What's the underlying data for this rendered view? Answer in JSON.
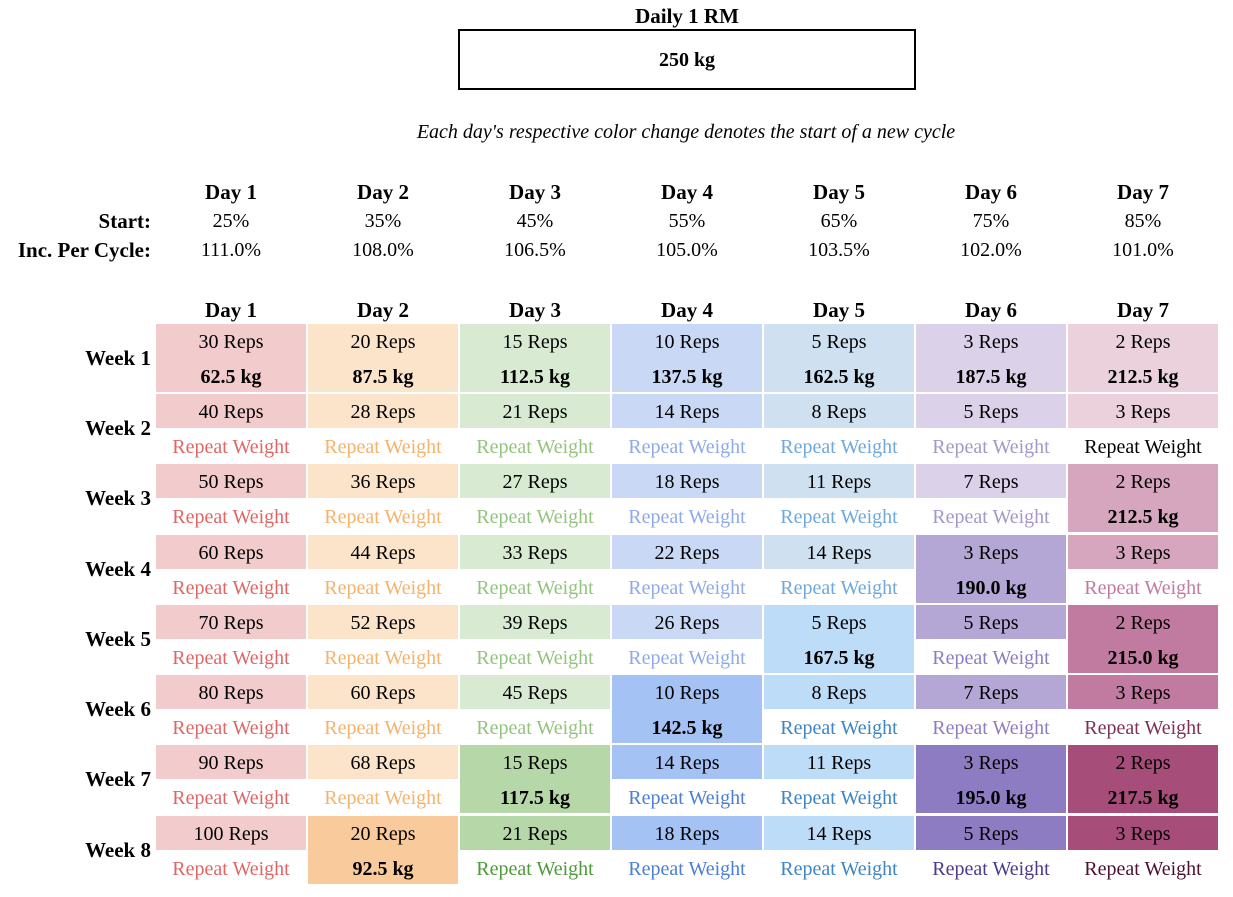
{
  "title": "Daily 1 RM",
  "one_rm": "250 kg",
  "note": "Each day's respective color change denotes the start of a new cycle",
  "settings": {
    "start_label": "Start:",
    "inc_label": "Inc. Per Cycle:",
    "days": [
      {
        "day": "Day 1",
        "start": "25%",
        "inc": "111.0%"
      },
      {
        "day": "Day 2",
        "start": "35%",
        "inc": "108.0%"
      },
      {
        "day": "Day 3",
        "start": "45%",
        "inc": "106.5%"
      },
      {
        "day": "Day 4",
        "start": "55%",
        "inc": "105.0%"
      },
      {
        "day": "Day 5",
        "start": "65%",
        "inc": "103.5%"
      },
      {
        "day": "Day 6",
        "start": "75%",
        "inc": "102.0%"
      },
      {
        "day": "Day 7",
        "start": "85%",
        "inc": "101.0%"
      }
    ]
  },
  "schedule": {
    "day_headers": [
      "Day 1",
      "Day 2",
      "Day 3",
      "Day 4",
      "Day 5",
      "Day 6",
      "Day 7"
    ],
    "weeks": [
      {
        "label": "Week 1",
        "cells": [
          {
            "reps": "30 Reps",
            "weight": "62.5 kg",
            "bg": "#f2cbcc",
            "fg": "#000000"
          },
          {
            "reps": "20 Reps",
            "weight": "87.5 kg",
            "bg": "#fce4cb",
            "fg": "#000000"
          },
          {
            "reps": "15 Reps",
            "weight": "112.5 kg",
            "bg": "#d8ead1",
            "fg": "#000000"
          },
          {
            "reps": "10 Reps",
            "weight": "137.5 kg",
            "bg": "#c9d9f5",
            "fg": "#000000"
          },
          {
            "reps": "5 Reps",
            "weight": "162.5 kg",
            "bg": "#cfe1f1",
            "fg": "#000000"
          },
          {
            "reps": "3 Reps",
            "weight": "187.5 kg",
            "bg": "#dbd1e8",
            "fg": "#000000"
          },
          {
            "reps": "2 Reps",
            "weight": "212.5 kg",
            "bg": "#ead1dc",
            "fg": "#000000"
          }
        ]
      },
      {
        "label": "Week 2",
        "cells": [
          {
            "reps": "40 Reps",
            "weight": "Repeat Weight",
            "bg": "#f2cbcc",
            "fg": "#e06666"
          },
          {
            "reps": "28 Reps",
            "weight": "Repeat Weight",
            "bg": "#fce4cb",
            "fg": "#f6b26b"
          },
          {
            "reps": "21 Reps",
            "weight": "Repeat Weight",
            "bg": "#d8ead1",
            "fg": "#93c47d"
          },
          {
            "reps": "14 Reps",
            "weight": "Repeat Weight",
            "bg": "#c9d9f5",
            "fg": "#8eaae8"
          },
          {
            "reps": "8 Reps",
            "weight": "Repeat Weight",
            "bg": "#cfe1f1",
            "fg": "#6fa8dc"
          },
          {
            "reps": "5 Reps",
            "weight": "Repeat Weight",
            "bg": "#dbd1e8",
            "fg": "#a497ca"
          },
          {
            "reps": "3 Reps",
            "weight": "Repeat Weight",
            "bg": "#ead1dc",
            "fg": "#000000"
          }
        ]
      },
      {
        "label": "Week 3",
        "cells": [
          {
            "reps": "50 Reps",
            "weight": "Repeat Weight",
            "bg": "#f2cbcc",
            "fg": "#e06666"
          },
          {
            "reps": "36 Reps",
            "weight": "Repeat Weight",
            "bg": "#fce4cb",
            "fg": "#f6b26b"
          },
          {
            "reps": "27 Reps",
            "weight": "Repeat Weight",
            "bg": "#d8ead1",
            "fg": "#93c47d"
          },
          {
            "reps": "18 Reps",
            "weight": "Repeat Weight",
            "bg": "#c9d9f5",
            "fg": "#8eaae8"
          },
          {
            "reps": "11 Reps",
            "weight": "Repeat Weight",
            "bg": "#cfe1f1",
            "fg": "#6fa8dc"
          },
          {
            "reps": "7 Reps",
            "weight": "Repeat Weight",
            "bg": "#dbd1e8",
            "fg": "#a497ca"
          },
          {
            "reps": "2 Reps",
            "weight": "212.5 kg",
            "bg": "#d5a6bd",
            "fg": "#000000"
          }
        ]
      },
      {
        "label": "Week 4",
        "cells": [
          {
            "reps": "60 Reps",
            "weight": "Repeat Weight",
            "bg": "#f2cbcc",
            "fg": "#e06666"
          },
          {
            "reps": "44 Reps",
            "weight": "Repeat Weight",
            "bg": "#fce4cb",
            "fg": "#f6b26b"
          },
          {
            "reps": "33 Reps",
            "weight": "Repeat Weight",
            "bg": "#d8ead1",
            "fg": "#93c47d"
          },
          {
            "reps": "22 Reps",
            "weight": "Repeat Weight",
            "bg": "#c9d9f5",
            "fg": "#8eaae8"
          },
          {
            "reps": "14 Reps",
            "weight": "Repeat Weight",
            "bg": "#cfe1f1",
            "fg": "#6fa8dc"
          },
          {
            "reps": "3 Reps",
            "weight": "190.0 kg",
            "bg": "#b4a7d6",
            "fg": "#000000"
          },
          {
            "reps": "3 Reps",
            "weight": "Repeat Weight",
            "bg": "#d5a6bd",
            "fg": "#c27ba0"
          }
        ]
      },
      {
        "label": "Week 5",
        "cells": [
          {
            "reps": "70 Reps",
            "weight": "Repeat Weight",
            "bg": "#f2cbcc",
            "fg": "#e06666"
          },
          {
            "reps": "52 Reps",
            "weight": "Repeat Weight",
            "bg": "#fce4cb",
            "fg": "#f6b26b"
          },
          {
            "reps": "39 Reps",
            "weight": "Repeat Weight",
            "bg": "#d8ead1",
            "fg": "#93c47d"
          },
          {
            "reps": "26 Reps",
            "weight": "Repeat Weight",
            "bg": "#c9d9f5",
            "fg": "#8eaae8"
          },
          {
            "reps": "5 Reps",
            "weight": "167.5 kg",
            "bg": "#bddcf8",
            "fg": "#000000"
          },
          {
            "reps": "5 Reps",
            "weight": "Repeat Weight",
            "bg": "#b4a7d6",
            "fg": "#8e7cc3"
          },
          {
            "reps": "2 Reps",
            "weight": "215.0 kg",
            "bg": "#c27ba0",
            "fg": "#000000"
          }
        ]
      },
      {
        "label": "Week 6",
        "cells": [
          {
            "reps": "80 Reps",
            "weight": "Repeat Weight",
            "bg": "#f2cbcc",
            "fg": "#e06666"
          },
          {
            "reps": "60 Reps",
            "weight": "Repeat Weight",
            "bg": "#fce4cb",
            "fg": "#f6b26b"
          },
          {
            "reps": "45 Reps",
            "weight": "Repeat Weight",
            "bg": "#d8ead1",
            "fg": "#93c47d"
          },
          {
            "reps": "10 Reps",
            "weight": "142.5 kg",
            "bg": "#a4c2f4",
            "fg": "#000000"
          },
          {
            "reps": "8 Reps",
            "weight": "Repeat Weight",
            "bg": "#bddcf8",
            "fg": "#3d85c6"
          },
          {
            "reps": "7 Reps",
            "weight": "Repeat Weight",
            "bg": "#b4a7d6",
            "fg": "#8e7cc3"
          },
          {
            "reps": "3 Reps",
            "weight": "Repeat Weight",
            "bg": "#c27ba0",
            "fg": "#7e3057"
          }
        ]
      },
      {
        "label": "Week 7",
        "cells": [
          {
            "reps": "90 Reps",
            "weight": "Repeat Weight",
            "bg": "#f2cbcc",
            "fg": "#e06666"
          },
          {
            "reps": "68 Reps",
            "weight": "Repeat Weight",
            "bg": "#fce4cb",
            "fg": "#f6b26b"
          },
          {
            "reps": "15 Reps",
            "weight": "117.5 kg",
            "bg": "#b6d7a8",
            "fg": "#000000"
          },
          {
            "reps": "14 Reps",
            "weight": "Repeat Weight",
            "bg": "#a4c2f4",
            "fg": "#4a7fd6"
          },
          {
            "reps": "11 Reps",
            "weight": "Repeat Weight",
            "bg": "#bddcf8",
            "fg": "#3d85c6"
          },
          {
            "reps": "3 Reps",
            "weight": "195.0 kg",
            "bg": "#8e7cc3",
            "fg": "#000000"
          },
          {
            "reps": "2 Reps",
            "weight": "217.5 kg",
            "bg": "#a64d79",
            "fg": "#000000"
          }
        ]
      },
      {
        "label": "Week 8",
        "cells": [
          {
            "reps": "100 Reps",
            "weight": "Repeat Weight",
            "bg": "#f2cbcc",
            "fg": "#e06666"
          },
          {
            "reps": "20 Reps",
            "weight": "92.5 kg",
            "bg": "#f9cb9c",
            "fg": "#000000"
          },
          {
            "reps": "21 Reps",
            "weight": "Repeat Weight",
            "bg": "#b6d7a8",
            "fg": "#4e9a3a"
          },
          {
            "reps": "18 Reps",
            "weight": "Repeat Weight",
            "bg": "#a4c2f4",
            "fg": "#4a7fd6"
          },
          {
            "reps": "14 Reps",
            "weight": "Repeat Weight",
            "bg": "#bddcf8",
            "fg": "#3d85c6"
          },
          {
            "reps": "5 Reps",
            "weight": "Repeat Weight",
            "bg": "#8e7cc3",
            "fg": "#4b3a8c"
          },
          {
            "reps": "3 Reps",
            "weight": "Repeat Weight",
            "bg": "#a64d79",
            "fg": "#4c1130"
          }
        ]
      }
    ]
  }
}
